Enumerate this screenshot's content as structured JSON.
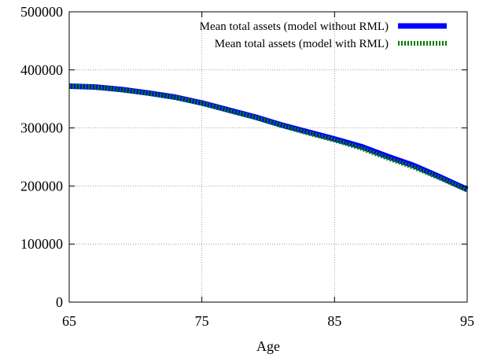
{
  "chart_data": {
    "type": "line",
    "title": "",
    "xlabel": "Age",
    "ylabel": "",
    "xlim": [
      65,
      95
    ],
    "ylim": [
      0,
      500000
    ],
    "x_ticks": [
      65,
      75,
      85,
      95
    ],
    "y_ticks": [
      0,
      100000,
      200000,
      300000,
      400000,
      500000
    ],
    "grid": true,
    "legend_position": "top-right",
    "series": [
      {
        "name": "Mean total assets (model without RML)",
        "color": "#0000ff",
        "style": "solid",
        "x": [
          65,
          67,
          69,
          71,
          73,
          75,
          77,
          79,
          81,
          83,
          85,
          87,
          89,
          91,
          93,
          95
        ],
        "y": [
          372000,
          370500,
          366000,
          360000,
          353000,
          343000,
          331000,
          319000,
          305000,
          293000,
          281000,
          268000,
          251000,
          235000,
          215000,
          194000
        ]
      },
      {
        "name": "Mean total assets (model with RML)",
        "color": "#008000",
        "style": "dotted",
        "x": [
          65,
          67,
          69,
          71,
          73,
          75,
          77,
          79,
          81,
          83,
          85,
          87,
          89,
          91,
          93,
          95
        ],
        "y": [
          372000,
          370500,
          365500,
          359500,
          352500,
          342500,
          330000,
          318000,
          304000,
          291000,
          279000,
          265000,
          248000,
          232000,
          213000,
          193000
        ]
      }
    ]
  }
}
